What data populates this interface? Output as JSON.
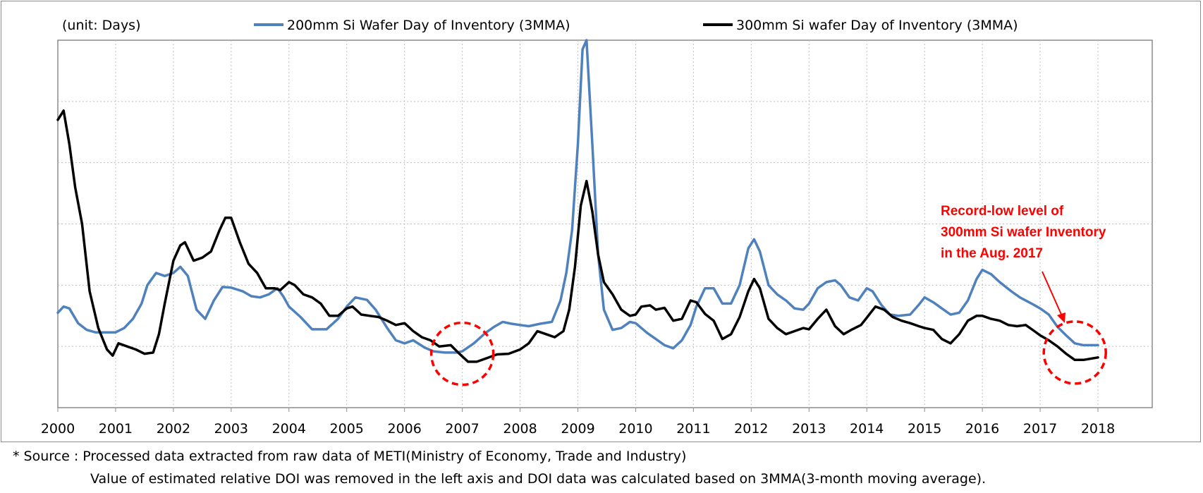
{
  "chart_data": {
    "type": "line",
    "unit_label": "(unit: Days)",
    "x_ticks": [
      "2000",
      "2001",
      "2002",
      "2003",
      "2004",
      "2005",
      "2006",
      "2007",
      "2008",
      "2009",
      "2010",
      "2011",
      "2012",
      "2013",
      "2014",
      "2015",
      "2016",
      "2017",
      "2018"
    ],
    "xlim": [
      2000,
      2018
    ],
    "y_ticks_shown": false,
    "ylim": [
      0,
      6
    ],
    "grid": "dashed, light gray",
    "legend_position": "top",
    "series": [
      {
        "name": "200mm Si Wafer Day of Inventory (3MMA)",
        "color": "#4f81bd",
        "points": [
          [
            2000.0,
            1.55
          ],
          [
            2000.1,
            1.65
          ],
          [
            2000.2,
            1.62
          ],
          [
            2000.35,
            1.38
          ],
          [
            2000.5,
            1.27
          ],
          [
            2000.65,
            1.23
          ],
          [
            2000.85,
            1.23
          ],
          [
            2001.0,
            1.23
          ],
          [
            2001.15,
            1.3
          ],
          [
            2001.3,
            1.45
          ],
          [
            2001.45,
            1.7
          ],
          [
            2001.55,
            2.0
          ],
          [
            2001.7,
            2.2
          ],
          [
            2001.85,
            2.15
          ],
          [
            2002.0,
            2.2
          ],
          [
            2002.12,
            2.3
          ],
          [
            2002.25,
            2.15
          ],
          [
            2002.4,
            1.6
          ],
          [
            2002.55,
            1.45
          ],
          [
            2002.7,
            1.75
          ],
          [
            2002.85,
            1.97
          ],
          [
            2003.0,
            1.96
          ],
          [
            2003.2,
            1.9
          ],
          [
            2003.35,
            1.82
          ],
          [
            2003.5,
            1.8
          ],
          [
            2003.65,
            1.85
          ],
          [
            2003.8,
            1.95
          ],
          [
            2003.9,
            1.82
          ],
          [
            2004.0,
            1.65
          ],
          [
            2004.2,
            1.48
          ],
          [
            2004.4,
            1.28
          ],
          [
            2004.65,
            1.28
          ],
          [
            2004.85,
            1.45
          ],
          [
            2005.0,
            1.65
          ],
          [
            2005.15,
            1.8
          ],
          [
            2005.35,
            1.76
          ],
          [
            2005.5,
            1.6
          ],
          [
            2005.7,
            1.3
          ],
          [
            2005.85,
            1.1
          ],
          [
            2006.0,
            1.05
          ],
          [
            2006.15,
            1.1
          ],
          [
            2006.35,
            0.98
          ],
          [
            2006.5,
            0.92
          ],
          [
            2006.7,
            0.9
          ],
          [
            2006.9,
            0.9
          ],
          [
            2007.0,
            0.92
          ],
          [
            2007.2,
            1.05
          ],
          [
            2007.4,
            1.22
          ],
          [
            2007.55,
            1.32
          ],
          [
            2007.7,
            1.4
          ],
          [
            2007.85,
            1.37
          ],
          [
            2008.0,
            1.35
          ],
          [
            2008.15,
            1.33
          ],
          [
            2008.35,
            1.37
          ],
          [
            2008.55,
            1.4
          ],
          [
            2008.7,
            1.75
          ],
          [
            2008.8,
            2.2
          ],
          [
            2008.9,
            2.9
          ],
          [
            2009.0,
            4.3
          ],
          [
            2009.08,
            5.85
          ],
          [
            2009.15,
            6.0
          ],
          [
            2009.25,
            4.3
          ],
          [
            2009.35,
            2.5
          ],
          [
            2009.45,
            1.6
          ],
          [
            2009.6,
            1.27
          ],
          [
            2009.75,
            1.3
          ],
          [
            2009.9,
            1.4
          ],
          [
            2010.0,
            1.38
          ],
          [
            2010.2,
            1.22
          ],
          [
            2010.35,
            1.12
          ],
          [
            2010.5,
            1.02
          ],
          [
            2010.65,
            0.97
          ],
          [
            2010.8,
            1.1
          ],
          [
            2010.95,
            1.35
          ],
          [
            2011.05,
            1.65
          ],
          [
            2011.2,
            1.95
          ],
          [
            2011.35,
            1.95
          ],
          [
            2011.5,
            1.7
          ],
          [
            2011.65,
            1.7
          ],
          [
            2011.8,
            2.0
          ],
          [
            2011.95,
            2.6
          ],
          [
            2012.05,
            2.75
          ],
          [
            2012.15,
            2.55
          ],
          [
            2012.3,
            2.0
          ],
          [
            2012.45,
            1.85
          ],
          [
            2012.6,
            1.75
          ],
          [
            2012.75,
            1.62
          ],
          [
            2012.9,
            1.6
          ],
          [
            2013.0,
            1.7
          ],
          [
            2013.15,
            1.95
          ],
          [
            2013.3,
            2.05
          ],
          [
            2013.45,
            2.08
          ],
          [
            2013.55,
            2.0
          ],
          [
            2013.7,
            1.8
          ],
          [
            2013.85,
            1.75
          ],
          [
            2014.0,
            1.95
          ],
          [
            2014.1,
            1.9
          ],
          [
            2014.25,
            1.68
          ],
          [
            2014.4,
            1.52
          ],
          [
            2014.55,
            1.5
          ],
          [
            2014.75,
            1.52
          ],
          [
            2014.9,
            1.68
          ],
          [
            2015.0,
            1.8
          ],
          [
            2015.15,
            1.72
          ],
          [
            2015.3,
            1.62
          ],
          [
            2015.45,
            1.52
          ],
          [
            2015.6,
            1.55
          ],
          [
            2015.75,
            1.75
          ],
          [
            2015.9,
            2.1
          ],
          [
            2016.0,
            2.25
          ],
          [
            2016.15,
            2.18
          ],
          [
            2016.3,
            2.05
          ],
          [
            2016.5,
            1.9
          ],
          [
            2016.65,
            1.8
          ],
          [
            2016.85,
            1.7
          ],
          [
            2017.0,
            1.62
          ],
          [
            2017.15,
            1.52
          ],
          [
            2017.3,
            1.32
          ],
          [
            2017.45,
            1.18
          ],
          [
            2017.6,
            1.05
          ],
          [
            2017.75,
            1.02
          ],
          [
            2018.0,
            1.02
          ]
        ]
      },
      {
        "name": "300mm Si wafer Day of Inventory (3MMA)",
        "color": "#000000",
        "points": [
          [
            2000.0,
            4.7
          ],
          [
            2000.1,
            4.85
          ],
          [
            2000.2,
            4.3
          ],
          [
            2000.3,
            3.6
          ],
          [
            2000.42,
            3.0
          ],
          [
            2000.55,
            1.9
          ],
          [
            2000.7,
            1.3
          ],
          [
            2000.85,
            0.95
          ],
          [
            2000.95,
            0.85
          ],
          [
            2001.05,
            1.05
          ],
          [
            2001.2,
            1.0
          ],
          [
            2001.35,
            0.95
          ],
          [
            2001.5,
            0.88
          ],
          [
            2001.65,
            0.9
          ],
          [
            2001.75,
            1.2
          ],
          [
            2001.85,
            1.7
          ],
          [
            2002.0,
            2.4
          ],
          [
            2002.12,
            2.65
          ],
          [
            2002.2,
            2.7
          ],
          [
            2002.35,
            2.4
          ],
          [
            2002.5,
            2.45
          ],
          [
            2002.65,
            2.55
          ],
          [
            2002.8,
            2.9
          ],
          [
            2002.9,
            3.1
          ],
          [
            2003.0,
            3.1
          ],
          [
            2003.15,
            2.7
          ],
          [
            2003.3,
            2.35
          ],
          [
            2003.45,
            2.2
          ],
          [
            2003.6,
            1.95
          ],
          [
            2003.75,
            1.95
          ],
          [
            2003.85,
            1.92
          ],
          [
            2004.0,
            2.05
          ],
          [
            2004.1,
            2.0
          ],
          [
            2004.25,
            1.85
          ],
          [
            2004.4,
            1.8
          ],
          [
            2004.55,
            1.7
          ],
          [
            2004.7,
            1.5
          ],
          [
            2004.85,
            1.5
          ],
          [
            2005.0,
            1.62
          ],
          [
            2005.1,
            1.65
          ],
          [
            2005.25,
            1.52
          ],
          [
            2005.4,
            1.5
          ],
          [
            2005.55,
            1.48
          ],
          [
            2005.7,
            1.42
          ],
          [
            2005.85,
            1.35
          ],
          [
            2006.0,
            1.38
          ],
          [
            2006.15,
            1.25
          ],
          [
            2006.3,
            1.15
          ],
          [
            2006.45,
            1.1
          ],
          [
            2006.6,
            1.0
          ],
          [
            2006.8,
            1.02
          ],
          [
            2006.95,
            0.88
          ],
          [
            2007.1,
            0.75
          ],
          [
            2007.25,
            0.75
          ],
          [
            2007.4,
            0.8
          ],
          [
            2007.6,
            0.87
          ],
          [
            2007.8,
            0.88
          ],
          [
            2008.0,
            0.95
          ],
          [
            2008.15,
            1.05
          ],
          [
            2008.3,
            1.25
          ],
          [
            2008.45,
            1.2
          ],
          [
            2008.6,
            1.15
          ],
          [
            2008.75,
            1.25
          ],
          [
            2008.85,
            1.6
          ],
          [
            2008.95,
            2.3
          ],
          [
            2009.05,
            3.3
          ],
          [
            2009.15,
            3.7
          ],
          [
            2009.25,
            3.2
          ],
          [
            2009.35,
            2.5
          ],
          [
            2009.45,
            2.05
          ],
          [
            2009.6,
            1.85
          ],
          [
            2009.75,
            1.6
          ],
          [
            2009.9,
            1.5
          ],
          [
            2010.0,
            1.52
          ],
          [
            2010.1,
            1.65
          ],
          [
            2010.25,
            1.67
          ],
          [
            2010.35,
            1.6
          ],
          [
            2010.5,
            1.63
          ],
          [
            2010.65,
            1.42
          ],
          [
            2010.8,
            1.45
          ],
          [
            2010.95,
            1.75
          ],
          [
            2011.05,
            1.72
          ],
          [
            2011.2,
            1.53
          ],
          [
            2011.35,
            1.42
          ],
          [
            2011.5,
            1.12
          ],
          [
            2011.65,
            1.2
          ],
          [
            2011.8,
            1.48
          ],
          [
            2011.95,
            1.9
          ],
          [
            2012.05,
            2.1
          ],
          [
            2012.15,
            1.95
          ],
          [
            2012.3,
            1.45
          ],
          [
            2012.45,
            1.3
          ],
          [
            2012.6,
            1.2
          ],
          [
            2012.75,
            1.25
          ],
          [
            2012.9,
            1.3
          ],
          [
            2013.0,
            1.28
          ],
          [
            2013.15,
            1.45
          ],
          [
            2013.3,
            1.6
          ],
          [
            2013.45,
            1.33
          ],
          [
            2013.6,
            1.2
          ],
          [
            2013.75,
            1.28
          ],
          [
            2013.9,
            1.35
          ],
          [
            2014.0,
            1.47
          ],
          [
            2014.15,
            1.65
          ],
          [
            2014.3,
            1.6
          ],
          [
            2014.45,
            1.48
          ],
          [
            2014.6,
            1.42
          ],
          [
            2014.75,
            1.38
          ],
          [
            2014.9,
            1.33
          ],
          [
            2015.0,
            1.3
          ],
          [
            2015.15,
            1.27
          ],
          [
            2015.3,
            1.12
          ],
          [
            2015.45,
            1.05
          ],
          [
            2015.6,
            1.2
          ],
          [
            2015.75,
            1.42
          ],
          [
            2015.9,
            1.5
          ],
          [
            2016.0,
            1.5
          ],
          [
            2016.15,
            1.45
          ],
          [
            2016.3,
            1.42
          ],
          [
            2016.45,
            1.35
          ],
          [
            2016.6,
            1.33
          ],
          [
            2016.75,
            1.35
          ],
          [
            2016.9,
            1.25
          ],
          [
            2017.0,
            1.18
          ],
          [
            2017.15,
            1.1
          ],
          [
            2017.3,
            1.0
          ],
          [
            2017.45,
            0.88
          ],
          [
            2017.6,
            0.78
          ],
          [
            2017.75,
            0.78
          ],
          [
            2018.0,
            0.82
          ]
        ]
      }
    ],
    "annotation": {
      "lines": [
        "Record-low level of",
        "300mm Si wafer Inventory",
        "in the Aug. 2017"
      ],
      "color": "#ff0000"
    },
    "highlight_circles": [
      {
        "x": 2007.0,
        "y": 0.88,
        "color": "#ff0000",
        "style": "dashed"
      },
      {
        "x": 2017.6,
        "y": 0.9,
        "color": "#ff0000",
        "style": "dashed"
      }
    ]
  },
  "footnotes": {
    "source": "* Source : Processed data extracted from raw data of METI(Ministry of Economy, Trade and Industry)",
    "method": "Value of  estimated relative DOI was removed in the left axis and DOI data was calculated based on 3MMA(3-month moving average)."
  }
}
